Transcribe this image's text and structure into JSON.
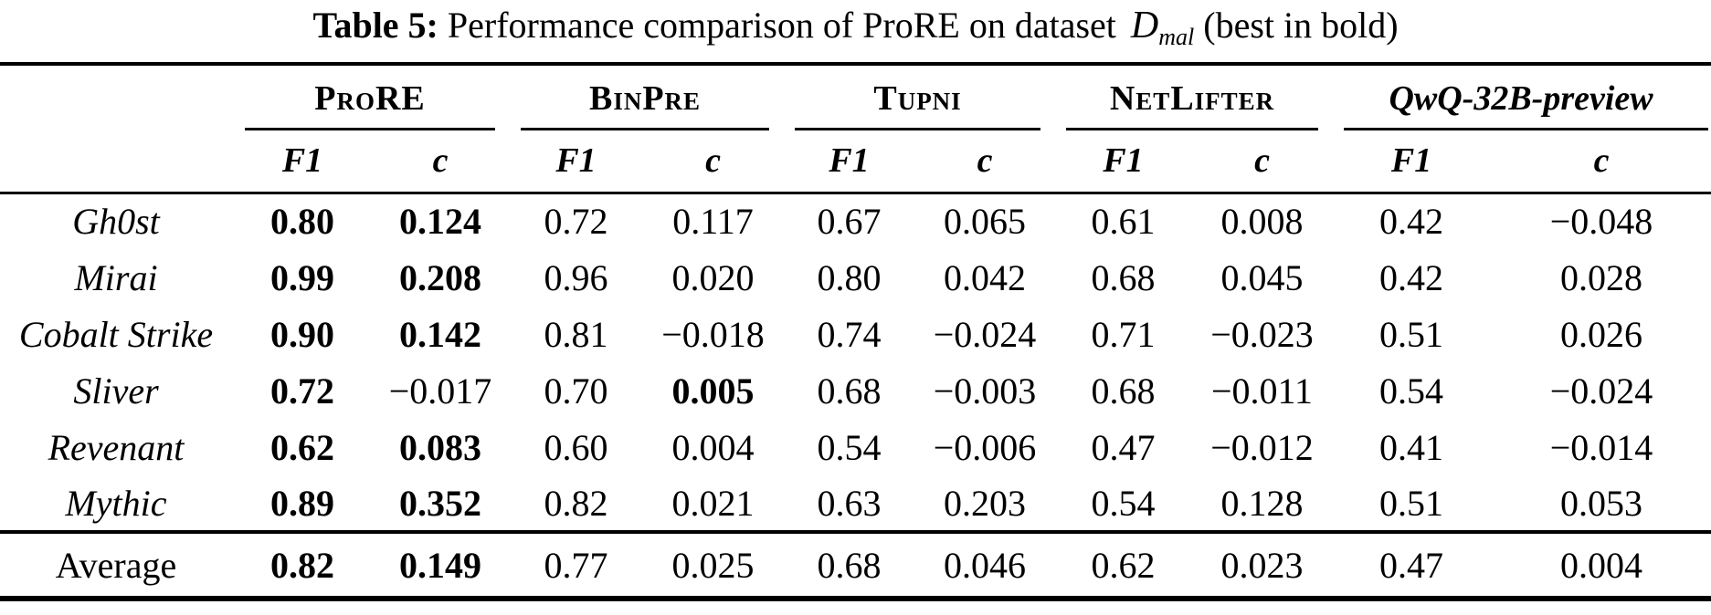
{
  "page": {
    "background": "#ffffff",
    "text_color": "#000000"
  },
  "caption": {
    "label": "Table 5:",
    "body": " Performance comparison of ProRE on dataset ",
    "dataset_symbol": "D",
    "dataset_subscript": "mal",
    "suffix": " (best in bold)"
  },
  "table": {
    "column_groups": [
      {
        "label": "ProRE",
        "style": "smallcaps"
      },
      {
        "label": "BinPre",
        "style": "smallcaps"
      },
      {
        "label": "Tupni",
        "style": "smallcaps"
      },
      {
        "label": "NetLifter",
        "style": "smallcaps"
      },
      {
        "label": "QwQ-32B-preview",
        "style": "italic"
      }
    ],
    "metric_headers": [
      "F1",
      "c"
    ],
    "rows": [
      {
        "label": "Gh0st",
        "italic": true,
        "values": [
          "0.80",
          "0.124",
          "0.72",
          "0.117",
          "0.67",
          "0.065",
          "0.61",
          "0.008",
          "0.42",
          "−0.048"
        ],
        "bold_cols": [
          0,
          1
        ]
      },
      {
        "label": "Mirai",
        "italic": true,
        "values": [
          "0.99",
          "0.208",
          "0.96",
          "0.020",
          "0.80",
          "0.042",
          "0.68",
          "0.045",
          "0.42",
          "0.028"
        ],
        "bold_cols": [
          0,
          1
        ]
      },
      {
        "label": "Cobalt Strike",
        "italic": true,
        "values": [
          "0.90",
          "0.142",
          "0.81",
          "−0.018",
          "0.74",
          "−0.024",
          "0.71",
          "−0.023",
          "0.51",
          "0.026"
        ],
        "bold_cols": [
          0,
          1
        ]
      },
      {
        "label": "Sliver",
        "italic": true,
        "values": [
          "0.72",
          "−0.017",
          "0.70",
          "0.005",
          "0.68",
          "−0.003",
          "0.68",
          "−0.011",
          "0.54",
          "−0.024"
        ],
        "bold_cols": [
          0,
          3
        ]
      },
      {
        "label": "Revenant",
        "italic": true,
        "values": [
          "0.62",
          "0.083",
          "0.60",
          "0.004",
          "0.54",
          "−0.006",
          "0.47",
          "−0.012",
          "0.41",
          "−0.014"
        ],
        "bold_cols": [
          0,
          1
        ]
      },
      {
        "label": "Mythic",
        "italic": true,
        "values": [
          "0.89",
          "0.352",
          "0.82",
          "0.021",
          "0.63",
          "0.203",
          "0.54",
          "0.128",
          "0.51",
          "0.053"
        ],
        "bold_cols": [
          0,
          1
        ]
      }
    ],
    "summary_row": {
      "label": "Average",
      "italic": false,
      "values": [
        "0.82",
        "0.149",
        "0.77",
        "0.025",
        "0.68",
        "0.046",
        "0.62",
        "0.023",
        "0.47",
        "0.004"
      ],
      "bold_cols": [
        0,
        1
      ]
    }
  }
}
